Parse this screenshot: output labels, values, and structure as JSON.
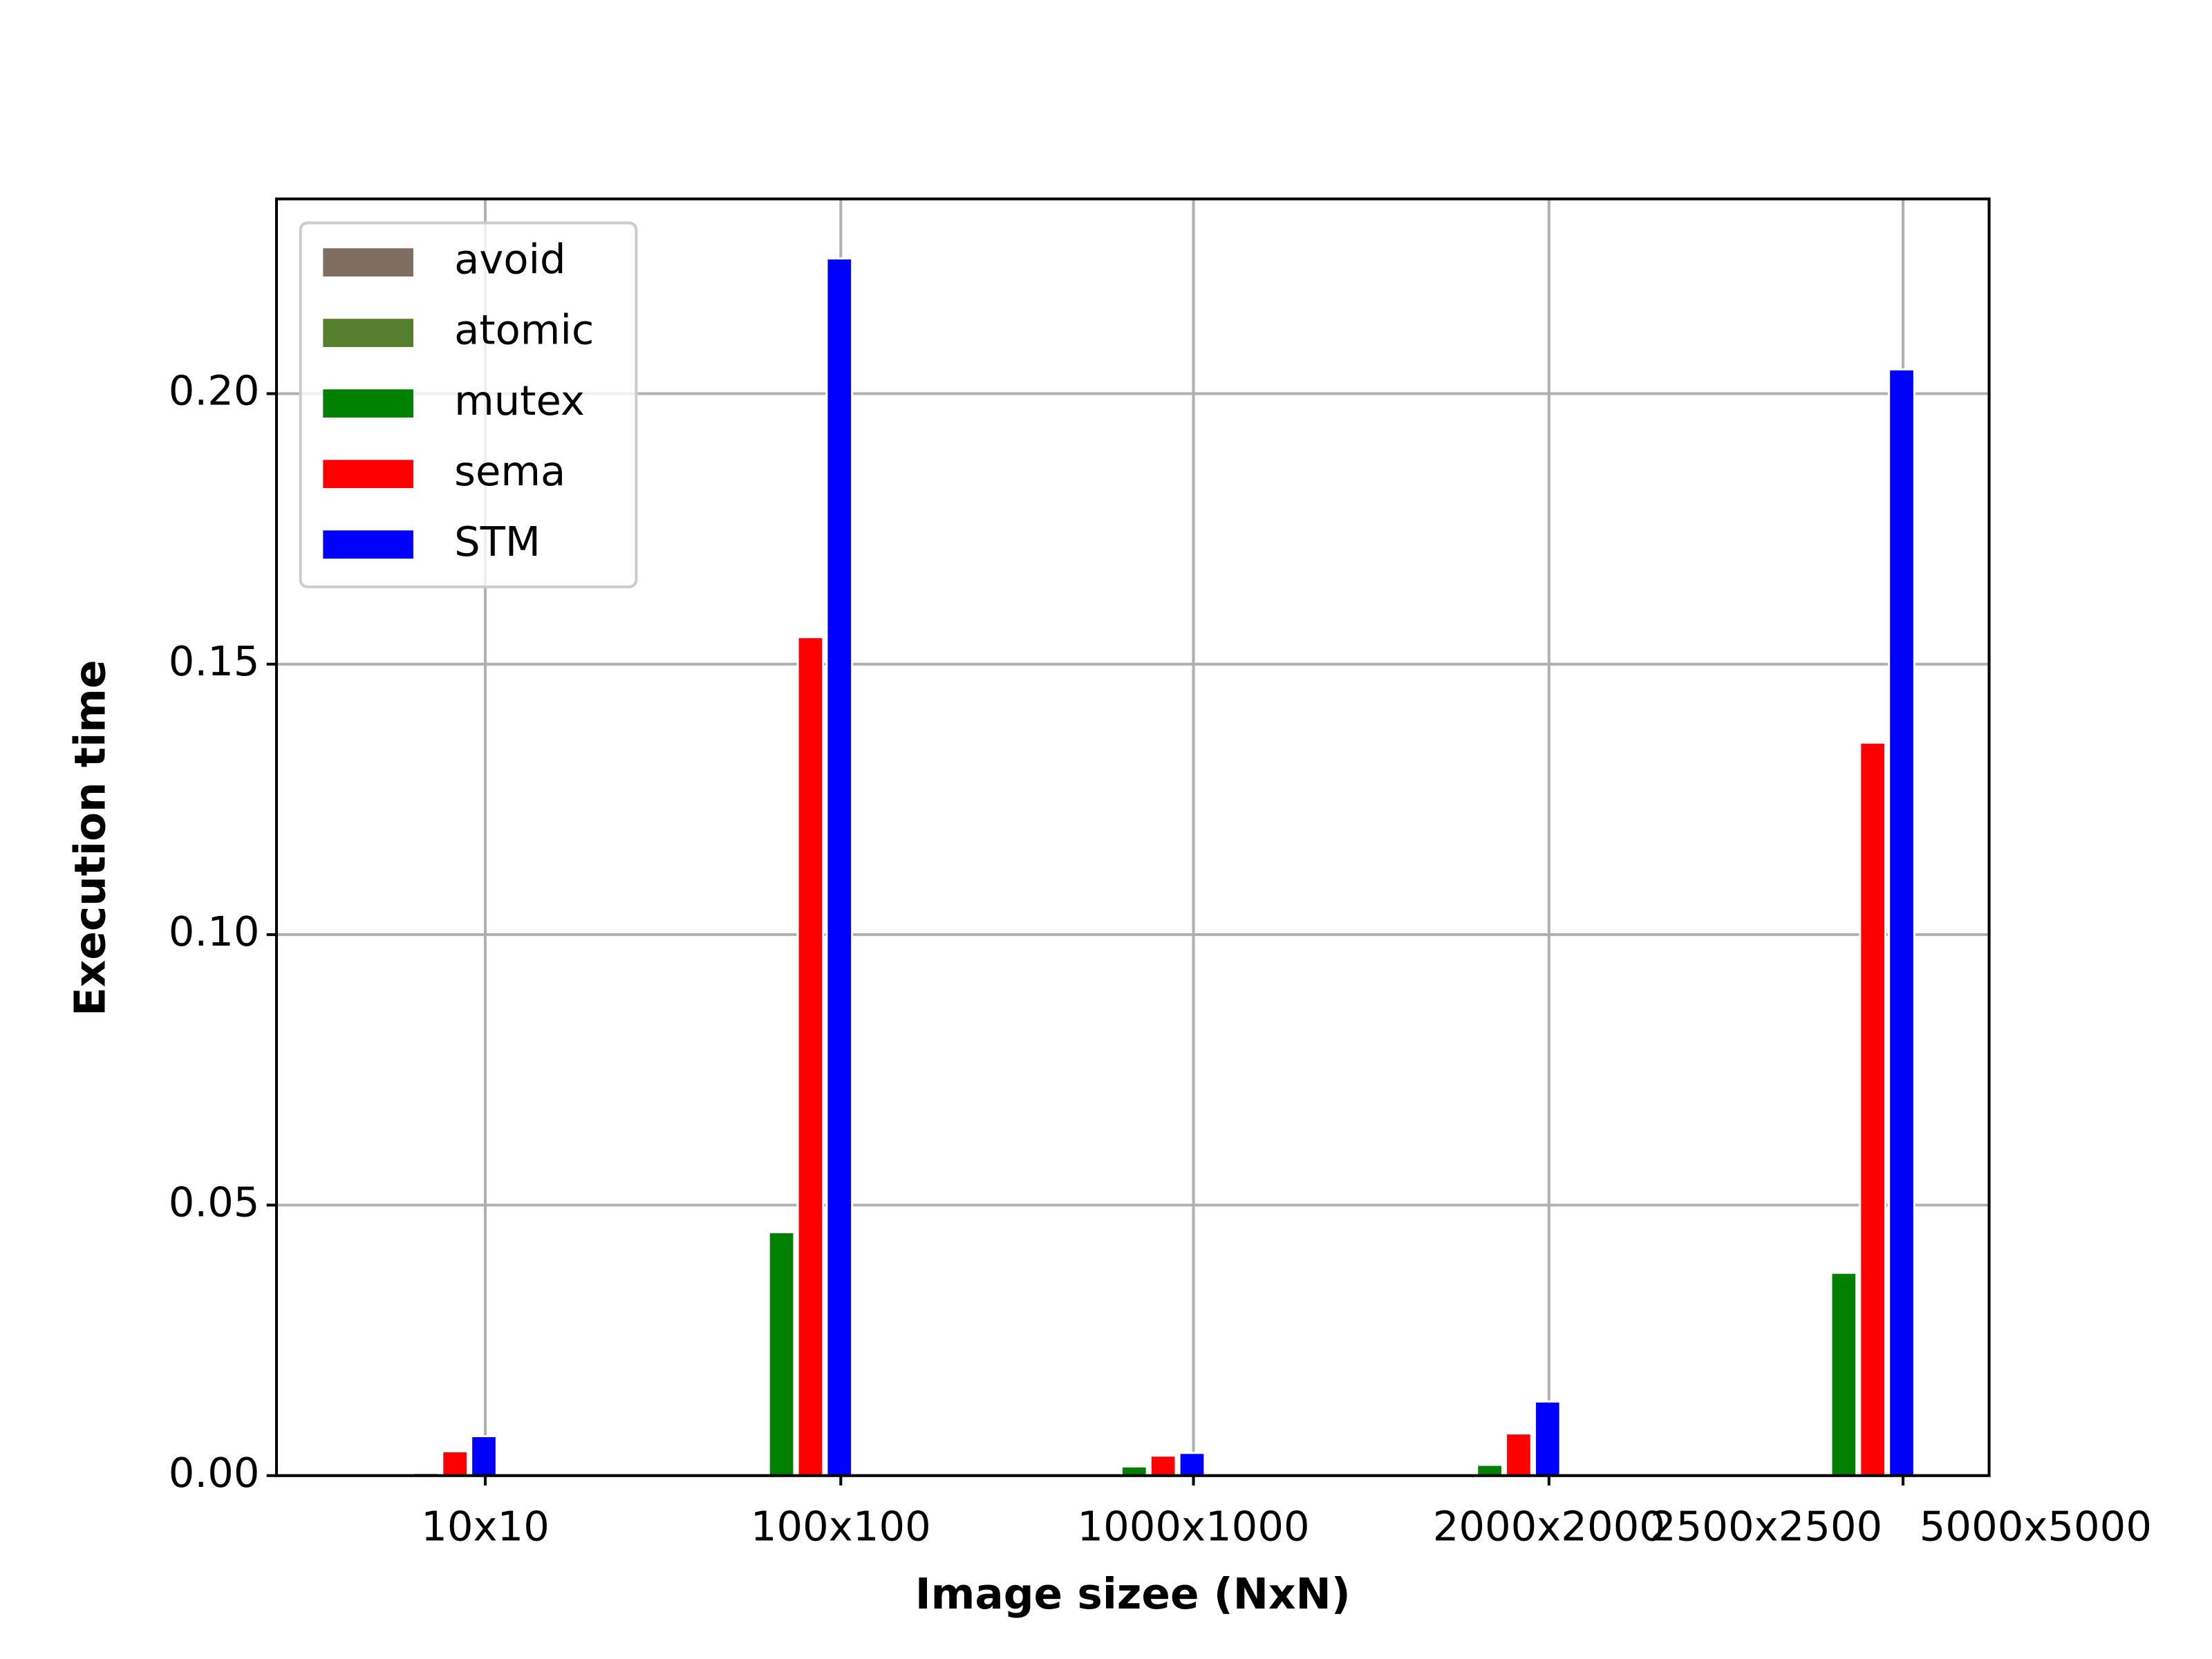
{
  "chart_data": {
    "type": "bar",
    "x_label": "Image sizee (NxN)",
    "y_label": "Execution time",
    "categories": [
      "10x10",
      "100x100",
      "1000x1000",
      "2000x2000",
      "2500x2500",
      "5000x5000"
    ],
    "series": [
      {
        "name": "avoid",
        "color": "#7f6d5f",
        "values": [
          0,
          0,
          0,
          0,
          0,
          null
        ]
      },
      {
        "name": "atomic",
        "color": "#557f2d",
        "values": [
          0,
          0,
          0,
          0,
          0,
          null
        ]
      },
      {
        "name": "mutex",
        "color": "#008000",
        "values": [
          0.0005,
          0.045,
          0.0017,
          0.002,
          0.0375,
          null
        ]
      },
      {
        "name": "sema",
        "color": "#ff0000",
        "values": [
          0.0045,
          0.155,
          0.0037,
          0.0078,
          0.1355,
          null
        ]
      },
      {
        "name": "STM",
        "color": "#0000ff",
        "values": [
          0.0073,
          0.225,
          0.0042,
          0.0137,
          0.2045,
          null
        ]
      }
    ],
    "ylim": [
      0,
      0.236
    ],
    "yticks": [
      {
        "value": 0,
        "label": "0.00"
      },
      {
        "value": 0.05,
        "label": "0.05"
      },
      {
        "value": 0.1,
        "label": "0.10"
      },
      {
        "value": 0.15,
        "label": "0.15"
      },
      {
        "value": 0.2,
        "label": "0.20"
      }
    ],
    "grid": true,
    "legend": "upper left"
  }
}
